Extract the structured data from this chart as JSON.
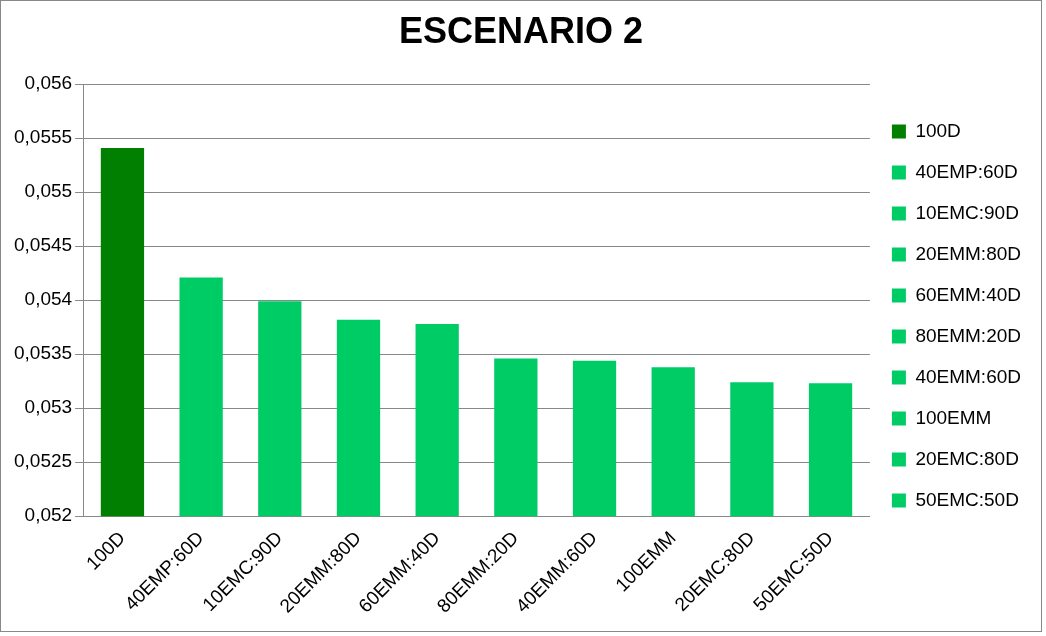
{
  "chart_data": {
    "type": "bar",
    "title": "ESCENARIO 2",
    "categories": [
      "100D",
      "40EMP:60D",
      "10EMC:90D",
      "20EMM:80D",
      "60EMM:40D",
      "80EMM:20D",
      "40EMM:60D",
      "100EMM",
      "20EMC:80D",
      "50EMC:50D"
    ],
    "series": [
      {
        "name": "100D",
        "color": "#007f00",
        "values": [
          0.05541,
          null,
          null,
          null,
          null,
          null,
          null,
          null,
          null,
          null
        ]
      },
      {
        "name": "40EMP:60D",
        "color": "#00cc66",
        "values": [
          null,
          0.05421,
          null,
          null,
          null,
          null,
          null,
          null,
          null,
          null
        ]
      },
      {
        "name": "10EMC:90D",
        "color": "#00cc66",
        "values": [
          null,
          null,
          0.05399,
          null,
          null,
          null,
          null,
          null,
          null,
          null
        ]
      },
      {
        "name": "20EMM:80D",
        "color": "#00cc66",
        "values": [
          null,
          null,
          null,
          0.05382,
          null,
          null,
          null,
          null,
          null,
          null
        ]
      },
      {
        "name": "60EMM:40D",
        "color": "#00cc66",
        "values": [
          null,
          null,
          null,
          null,
          0.05378,
          null,
          null,
          null,
          null,
          null
        ]
      },
      {
        "name": "80EMM:20D",
        "color": "#00cc66",
        "values": [
          null,
          null,
          null,
          null,
          null,
          0.05346,
          null,
          null,
          null,
          null
        ]
      },
      {
        "name": "40EMM:60D",
        "color": "#00cc66",
        "values": [
          null,
          null,
          null,
          null,
          null,
          null,
          0.05344,
          null,
          null,
          null
        ]
      },
      {
        "name": "100EMM",
        "color": "#00cc66",
        "values": [
          null,
          null,
          null,
          null,
          null,
          null,
          null,
          0.05338,
          null,
          null
        ]
      },
      {
        "name": "20EMC:80D",
        "color": "#00cc66",
        "values": [
          null,
          null,
          null,
          null,
          null,
          null,
          null,
          null,
          0.05324,
          null
        ]
      },
      {
        "name": "50EMC:50D",
        "color": "#00cc66",
        "values": [
          null,
          null,
          null,
          null,
          null,
          null,
          null,
          null,
          null,
          0.05323
        ]
      }
    ],
    "ylim": [
      0.052,
      0.056
    ],
    "yticks": [
      {
        "value": 0.052,
        "label": "0,052"
      },
      {
        "value": 0.0525,
        "label": "0,0525"
      },
      {
        "value": 0.053,
        "label": "0,053"
      },
      {
        "value": 0.0535,
        "label": "0,0535"
      },
      {
        "value": 0.054,
        "label": "0,054"
      },
      {
        "value": 0.0545,
        "label": "0,0545"
      },
      {
        "value": 0.055,
        "label": "0,055"
      },
      {
        "value": 0.0555,
        "label": "0,0555"
      },
      {
        "value": 0.056,
        "label": "0,056"
      }
    ],
    "grid": "y",
    "legend": "right"
  }
}
